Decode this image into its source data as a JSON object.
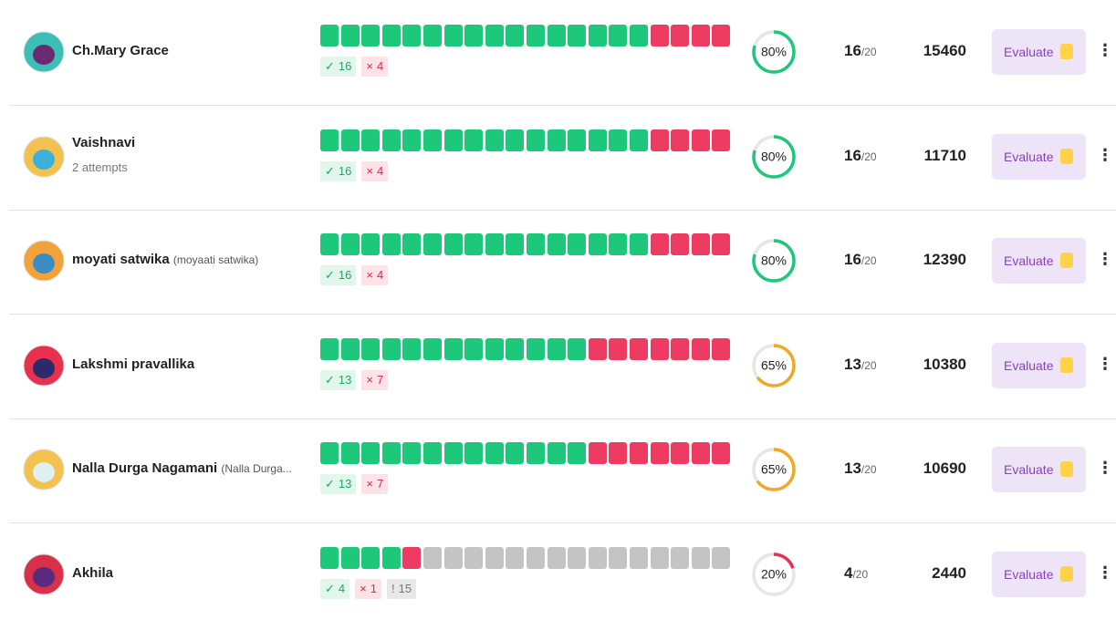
{
  "rows": [
    {
      "name": "Ch.Mary Grace",
      "correct": 16,
      "incorrect": 4,
      "accuracy": {
        "value": 80,
        "label": "80%"
      },
      "ring_color": "#1ec87a",
      "score": 16,
      "out_of": "/20",
      "points": 15460,
      "action": "Evaluate"
    },
    {
      "name": "Vaishnavi",
      "subtitle": "2 attempts",
      "correct": 16,
      "incorrect": 4,
      "accuracy": {
        "value": 80,
        "label": "80%"
      },
      "ring_color": "#1ec87a",
      "score": 16,
      "out_of": "/20",
      "points": 11710,
      "action": "Evaluate"
    },
    {
      "name": "moyati satwika",
      "alias": "(moyaati satwika)",
      "correct": 16,
      "incorrect": 4,
      "accuracy": {
        "value": 80,
        "label": "80%"
      },
      "ring_color": "#1ec87a",
      "score": 16,
      "out_of": "/20",
      "points": 12390,
      "action": "Evaluate"
    },
    {
      "name": "Lakshmi pravallika",
      "correct": 13,
      "incorrect": 7,
      "accuracy": {
        "value": 65,
        "label": "65%"
      },
      "ring_color": "#efa929",
      "score": 13,
      "out_of": "/20",
      "points": 10380,
      "action": "Evaluate"
    },
    {
      "name": "Nalla Durga Nagamani",
      "alias": "(Nalla Durga...",
      "correct": 13,
      "incorrect": 7,
      "accuracy": {
        "value": 65,
        "label": "65%"
      },
      "ring_color": "#efa929",
      "score": 13,
      "out_of": "/20",
      "points": 10690,
      "action": "Evaluate"
    },
    {
      "name": "Akhila",
      "correct": 4,
      "incorrect": 1,
      "unanswered": 15,
      "accuracy": {
        "value": 20,
        "label": "20%"
      },
      "ring_color": "#e8304f",
      "score": 4,
      "out_of": "/20",
      "points": 2440,
      "action": "Evaluate"
    }
  ]
}
